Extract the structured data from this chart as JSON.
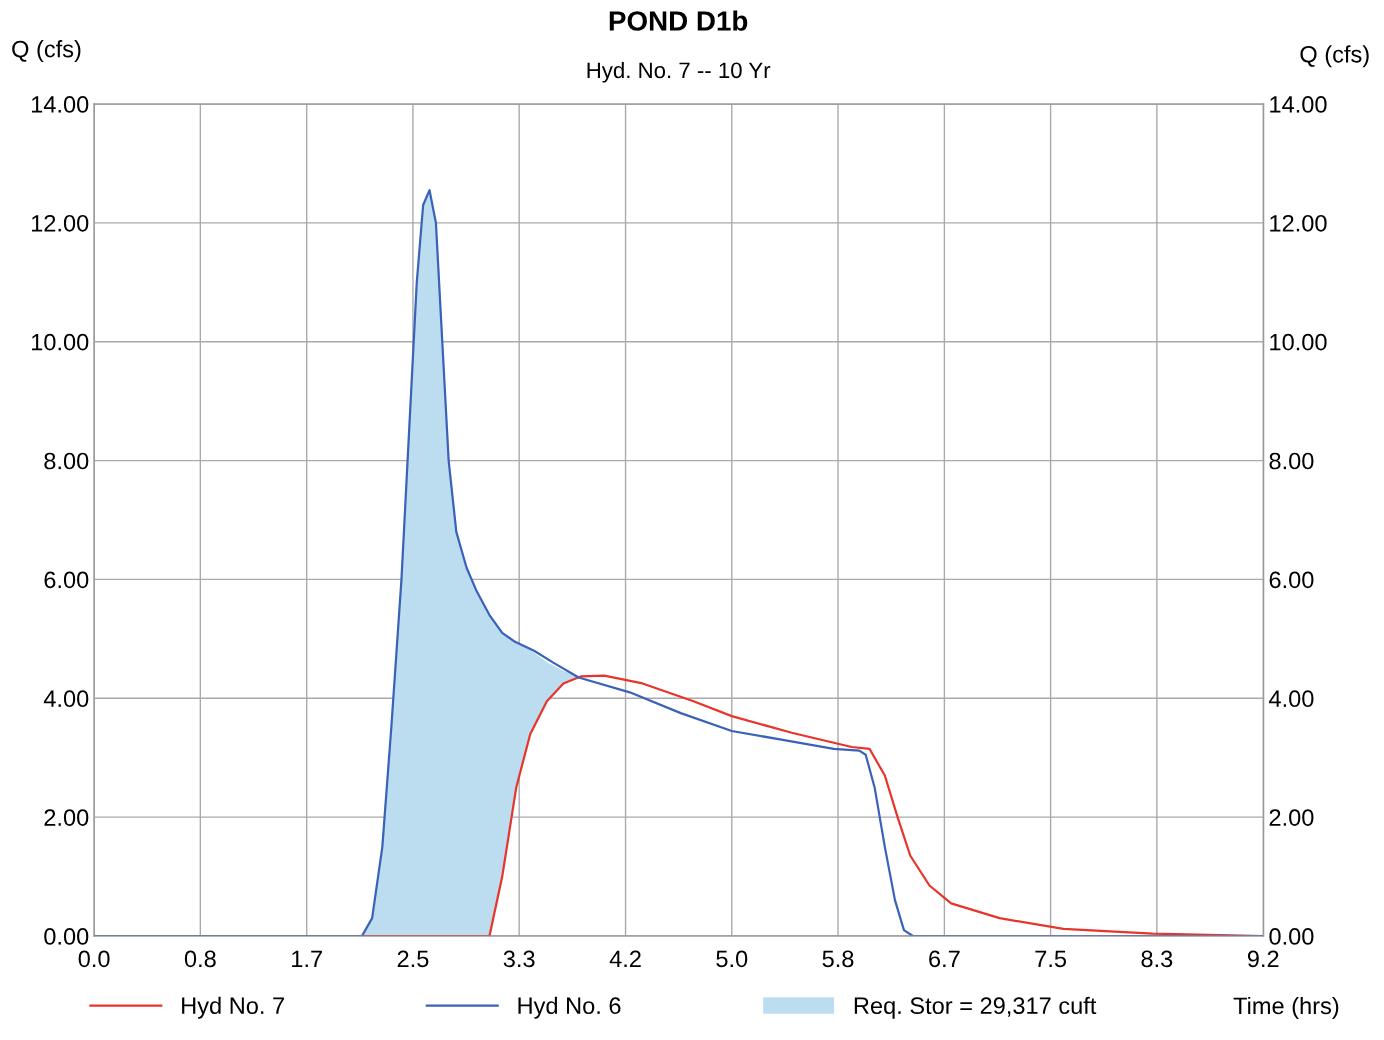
{
  "chart_data": {
    "type": "line",
    "title": "POND D1b",
    "subtitle": "Hyd. No. 7 -- 10 Yr",
    "xlabel": "Time (hrs)",
    "ylabel": "Q (cfs)",
    "y2label": "Q (cfs)",
    "xlim": [
      0,
      9.17
    ],
    "xticks": [
      {
        "value": 0,
        "label": "0.0"
      },
      {
        "value": 0.833,
        "label": "0.8"
      },
      {
        "value": 1.667,
        "label": "1.7"
      },
      {
        "value": 2.5,
        "label": "2.5"
      },
      {
        "value": 3.333,
        "label": "3.3"
      },
      {
        "value": 4.167,
        "label": "4.2"
      },
      {
        "value": 5.0,
        "label": "5.0"
      },
      {
        "value": 5.833,
        "label": "5.8"
      },
      {
        "value": 6.667,
        "label": "6.7"
      },
      {
        "value": 7.5,
        "label": "7.5"
      },
      {
        "value": 8.333,
        "label": "8.3"
      },
      {
        "value": 9.167,
        "label": "9.2"
      }
    ],
    "ylim": [
      0,
      14
    ],
    "yticks": [
      {
        "value": 0,
        "label": "0.00"
      },
      {
        "value": 2,
        "label": "2.00"
      },
      {
        "value": 4,
        "label": "4.00"
      },
      {
        "value": 6,
        "label": "6.00"
      },
      {
        "value": 8,
        "label": "8.00"
      },
      {
        "value": 10,
        "label": "10.00"
      },
      {
        "value": 12,
        "label": "12.00"
      },
      {
        "value": 14,
        "label": "14.00"
      }
    ],
    "y2lim": [
      0,
      14
    ],
    "y2ticks": [
      {
        "value": 0,
        "label": "0.00"
      },
      {
        "value": 2,
        "label": "2.00"
      },
      {
        "value": 4,
        "label": "4.00"
      },
      {
        "value": 6,
        "label": "6.00"
      },
      {
        "value": 8,
        "label": "8.00"
      },
      {
        "value": 10,
        "label": "10.00"
      },
      {
        "value": 12,
        "label": "12.00"
      },
      {
        "value": 14,
        "label": "14.00"
      }
    ],
    "grid": true,
    "legend": "bottom",
    "line_style": "solid",
    "series": [
      {
        "name": "Req. Stor = 29,317 cuft",
        "type": "area",
        "color": "#bcdcf0",
        "x": [
          2.1,
          2.18,
          2.26,
          2.33,
          2.41,
          2.47,
          2.53,
          2.58,
          2.63,
          2.68,
          2.73,
          2.78,
          2.84,
          2.92,
          3.0,
          3.1,
          3.2,
          3.31,
          3.42,
          3.55,
          3.68,
          3.82
        ],
        "values": [
          0,
          0.3,
          1.5,
          3.5,
          6.0,
          8.5,
          11.0,
          12.3,
          12.55,
          12.0,
          10.0,
          8.0,
          6.8,
          6.2,
          5.8,
          5.4,
          5.1,
          4.95,
          4.8,
          4.6,
          4.45,
          4.35
        ]
      },
      {
        "name": "Hyd No. 7",
        "color": "#e8352b",
        "x": [
          0,
          3.1,
          3.2,
          3.31,
          3.42,
          3.55,
          3.68,
          3.82,
          4.0,
          4.3,
          4.7,
          5.0,
          5.47,
          5.94,
          6.08,
          6.2,
          6.3,
          6.4,
          6.55,
          6.72,
          7.1,
          7.6,
          8.3,
          9.17
        ],
        "values": [
          0,
          0,
          1.0,
          2.5,
          3.4,
          3.95,
          4.25,
          4.37,
          4.38,
          4.25,
          3.95,
          3.7,
          3.42,
          3.18,
          3.15,
          2.7,
          2.0,
          1.35,
          0.85,
          0.55,
          0.3,
          0.12,
          0.04,
          0
        ]
      },
      {
        "name": "Hyd No. 6",
        "color": "#3a62b8",
        "x": [
          0,
          2.1,
          2.18,
          2.26,
          2.33,
          2.41,
          2.47,
          2.53,
          2.58,
          2.63,
          2.68,
          2.73,
          2.78,
          2.84,
          2.92,
          3.0,
          3.1,
          3.2,
          3.3,
          3.45,
          3.6,
          3.8,
          4.2,
          4.6,
          5.0,
          5.4,
          5.8,
          6.0,
          6.05,
          6.12,
          6.2,
          6.28,
          6.35,
          6.42,
          9.17
        ],
        "values": [
          0,
          0,
          0.3,
          1.5,
          3.5,
          6.0,
          8.5,
          11.0,
          12.3,
          12.55,
          12.0,
          10.0,
          8.0,
          6.8,
          6.2,
          5.8,
          5.4,
          5.1,
          4.95,
          4.8,
          4.6,
          4.35,
          4.1,
          3.75,
          3.45,
          3.3,
          3.15,
          3.12,
          3.05,
          2.5,
          1.5,
          0.6,
          0.1,
          0,
          0
        ]
      }
    ]
  }
}
